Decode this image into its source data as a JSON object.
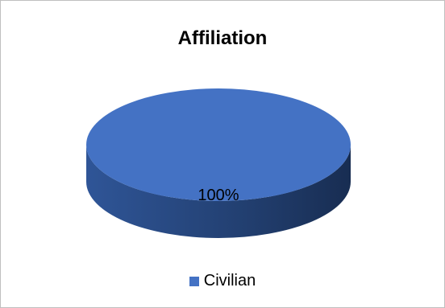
{
  "chart_data": {
    "type": "pie",
    "title": "Affiliation",
    "categories": [
      "Civilian"
    ],
    "values": [
      100
    ],
    "labels": [
      "100%"
    ],
    "colors": [
      "#4472c4"
    ],
    "side_colors": [
      "#1f3a6e",
      "#2f5597"
    ],
    "legend": "bottom",
    "style": "3d"
  }
}
